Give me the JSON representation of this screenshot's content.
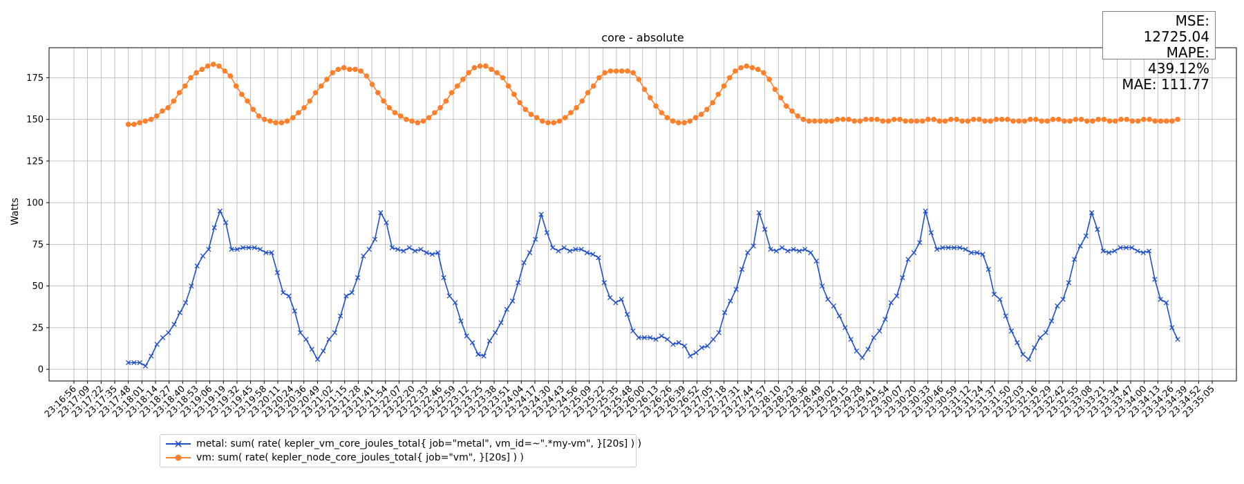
{
  "chart_data": {
    "type": "line",
    "title": "core - absolute",
    "ylabel": "Watts",
    "xlabel": "",
    "ylim": [
      -7,
      193
    ],
    "yticks": [
      0,
      25,
      50,
      75,
      100,
      125,
      150,
      175
    ],
    "grid": true,
    "legend_position": "bottom",
    "x_tick_labels": [
      "23:16:56",
      "23:17:09",
      "23:17:22",
      "23:17:35",
      "23:17:48",
      "23:18:01",
      "23:18:14",
      "23:18:27",
      "23:18:40",
      "23:18:53",
      "23:19:06",
      "23:19:19",
      "23:19:32",
      "23:19:45",
      "23:19:58",
      "23:20:11",
      "23:20:24",
      "23:20:36",
      "23:20:49",
      "23:21:02",
      "23:21:15",
      "23:21:28",
      "23:21:41",
      "23:21:54",
      "23:22:07",
      "23:22:20",
      "23:22:33",
      "23:22:46",
      "23:22:59",
      "23:23:12",
      "23:23:25",
      "23:23:38",
      "23:23:51",
      "23:24:04",
      "23:24:17",
      "23:24:30",
      "23:24:43",
      "23:24:56",
      "23:25:09",
      "23:25:22",
      "23:25:35",
      "23:25:48",
      "23:26:00",
      "23:26:13",
      "23:26:26",
      "23:26:39",
      "23:26:52",
      "23:27:05",
      "23:27:18",
      "23:27:31",
      "23:27:44",
      "23:27:57",
      "23:28:10",
      "23:28:23",
      "23:28:36",
      "23:28:49",
      "23:29:02",
      "23:29:15",
      "23:29:28",
      "23:29:41",
      "23:29:54",
      "23:30:07",
      "23:30:20",
      "23:30:33",
      "23:30:46",
      "23:30:59",
      "23:31:12",
      "23:31:24",
      "23:31:37",
      "23:31:50",
      "23:32:03",
      "23:32:16",
      "23:32:29",
      "23:32:42",
      "23:32:55",
      "23:33:08",
      "23:33:21",
      "23:33:34",
      "23:33:47",
      "23:34:00",
      "23:34:13",
      "23:34:26",
      "23:34:39",
      "23:34:52",
      "23:35:05"
    ],
    "x_start": "23:17:48",
    "x_end": "23:34:32",
    "series": [
      {
        "name": "metal: sum( rate( kepler_vm_core_joules_total{ job=\"metal\", vm_id=~\".*my-vm\", }[20s] ) )",
        "color": "#1f4fc6",
        "marker": "x",
        "values": [
          4,
          4,
          4,
          2,
          8,
          15,
          19,
          22,
          27,
          34,
          40,
          50,
          62,
          68,
          72,
          85,
          95,
          88,
          72,
          72,
          73,
          73,
          73,
          72,
          70,
          70,
          58,
          46,
          44,
          35,
          22,
          18,
          12,
          6,
          11,
          18,
          22,
          32,
          44,
          46,
          55,
          68,
          72,
          78,
          94,
          88,
          73,
          72,
          71,
          73,
          71,
          72,
          70,
          69,
          70,
          55,
          44,
          40,
          29,
          20,
          16,
          9,
          8,
          17,
          22,
          28,
          36,
          41,
          52,
          64,
          70,
          78,
          93,
          82,
          73,
          71,
          73,
          71,
          72,
          72,
          70,
          69,
          67,
          52,
          43,
          40,
          42,
          33,
          23,
          19,
          19,
          19,
          18,
          20,
          18,
          15,
          16,
          14,
          8,
          10,
          13,
          14,
          18,
          22,
          34,
          41,
          48,
          60,
          70,
          74,
          94,
          84,
          72,
          71,
          73,
          71,
          72,
          71,
          72,
          70,
          65,
          50,
          42,
          38,
          32,
          25,
          18,
          11,
          7,
          12,
          19,
          23,
          30,
          40,
          44,
          55,
          66,
          70,
          76,
          95,
          82,
          72,
          73,
          73,
          73,
          73,
          72,
          70,
          70,
          69,
          60,
          45,
          42,
          32,
          23,
          16,
          9,
          6,
          13,
          19,
          22,
          29,
          38,
          42,
          52,
          66,
          74,
          80,
          94,
          84,
          71,
          70,
          71,
          73,
          73,
          73,
          71,
          70,
          71,
          54,
          42,
          40,
          25,
          18
        ]
      },
      {
        "name": "vm: sum( rate( kepler_node_core_joules_total{ job=\"vm\", }[20s] ) )",
        "color": "#ff7f2a",
        "marker": "o",
        "values": [
          147,
          147,
          148,
          149,
          150,
          152,
          155,
          157,
          161,
          166,
          170,
          175,
          178,
          180,
          182,
          183,
          182,
          179,
          176,
          170,
          165,
          161,
          156,
          152,
          150,
          149,
          148,
          148,
          149,
          151,
          154,
          157,
          161,
          166,
          170,
          174,
          178,
          180,
          181,
          180,
          180,
          179,
          176,
          171,
          166,
          161,
          157,
          154,
          152,
          150,
          149,
          148,
          149,
          151,
          154,
          157,
          161,
          166,
          170,
          174,
          178,
          181,
          182,
          182,
          180,
          178,
          175,
          170,
          165,
          160,
          156,
          153,
          151,
          149,
          148,
          148,
          149,
          151,
          154,
          157,
          161,
          166,
          170,
          175,
          178,
          179,
          179,
          179,
          179,
          178,
          174,
          168,
          163,
          158,
          154,
          151,
          149,
          148,
          148,
          149,
          151,
          153,
          156,
          160,
          165,
          170,
          175,
          179,
          181,
          182,
          181,
          180,
          178,
          174,
          168,
          163,
          158,
          155,
          152,
          150,
          149,
          149,
          149,
          149,
          149,
          150,
          150,
          150,
          149,
          149,
          150,
          150,
          150,
          149,
          149,
          150,
          150,
          149,
          149,
          149,
          149,
          150,
          150,
          149,
          149,
          150,
          150,
          149,
          149,
          150,
          150,
          149,
          149,
          150,
          150,
          150,
          149,
          149,
          149,
          150,
          150,
          149,
          149,
          150,
          150,
          149,
          149,
          150,
          150,
          149,
          149,
          150,
          150,
          149,
          149,
          150,
          150,
          149,
          149,
          150,
          150,
          149,
          149,
          149,
          149,
          150
        ]
      }
    ]
  },
  "metrics": {
    "mse": "MSE: 12725.04",
    "mape": "MAPE: 439.12%",
    "mae": "MAE: 111.77"
  }
}
